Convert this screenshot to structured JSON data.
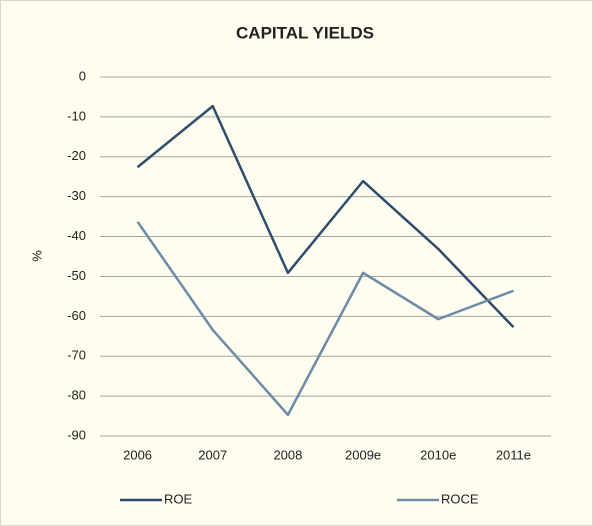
{
  "chart_data": {
    "type": "line",
    "title": "CAPITAL YIELDS",
    "y_label": "%",
    "categories": [
      "2006",
      "2007",
      "2008",
      "2009e",
      "2010e",
      "2011e"
    ],
    "series": [
      {
        "name": "ROE",
        "color": "#2e4d6b",
        "values": [
          -22.6,
          -7.3,
          -49.1,
          -26.1,
          -43.1,
          -62.7
        ]
      },
      {
        "name": "ROCE",
        "color": "#6c8ba4",
        "values": [
          -36.3,
          -63.4,
          -84.7,
          -49.1,
          -60.7,
          -53.6
        ]
      }
    ],
    "ylim": [
      -90,
      0
    ],
    "yticks": [
      0,
      -10,
      -20,
      -30,
      -40,
      -50,
      -60,
      -70,
      -80,
      -90
    ],
    "grid": true,
    "legend": "bottom"
  }
}
